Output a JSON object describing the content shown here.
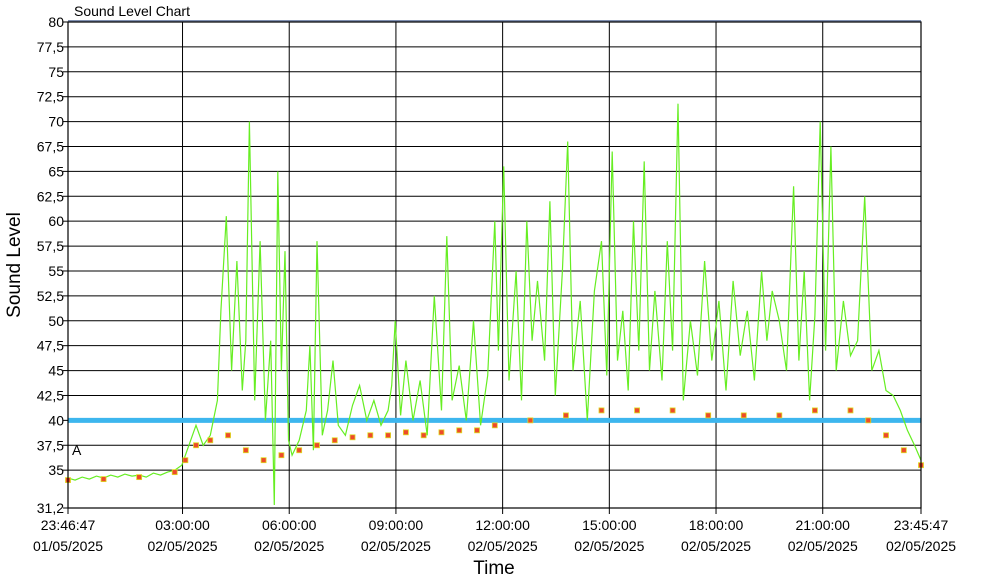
{
  "chart_data": {
    "type": "line",
    "title": "Sound Level Chart",
    "xlabel": "Time",
    "ylabel": "Sound Level",
    "ylim": [
      31.2,
      80
    ],
    "xlim_hours": [
      0,
      23.983
    ],
    "grid": true,
    "marker_label": "A",
    "threshold": {
      "value": 40,
      "color": "#3db6ee"
    },
    "colors": {
      "line": "#66ee22",
      "marker_fill": "#ee4a2a",
      "marker_edge": "#dddd22",
      "grid": "#000000"
    },
    "y_ticks": [
      "31,2",
      "35",
      "37,5",
      "40",
      "42,5",
      "45",
      "47,5",
      "50",
      "52,5",
      "55",
      "57,5",
      "60",
      "62,5",
      "65",
      "67,5",
      "70",
      "72,5",
      "75",
      "77,5",
      "80"
    ],
    "y_tick_values": [
      31.2,
      35,
      37.5,
      40,
      42.5,
      45,
      47.5,
      50,
      52.5,
      55,
      57.5,
      60,
      62.5,
      65,
      67.5,
      70,
      72.5,
      75,
      77.5,
      80
    ],
    "x_ticks": [
      {
        "h": 0,
        "time": "23:46:47",
        "date": "01/05/2025"
      },
      {
        "h": 3.22,
        "time": "03:00:00",
        "date": "02/05/2025"
      },
      {
        "h": 6.22,
        "time": "06:00:00",
        "date": "02/05/2025"
      },
      {
        "h": 9.22,
        "time": "09:00:00",
        "date": "02/05/2025"
      },
      {
        "h": 12.22,
        "time": "12:00:00",
        "date": "02/05/2025"
      },
      {
        "h": 15.22,
        "time": "15:00:00",
        "date": "02/05/2025"
      },
      {
        "h": 18.22,
        "time": "18:00:00",
        "date": "02/05/2025"
      },
      {
        "h": 21.22,
        "time": "21:00:00",
        "date": "02/05/2025"
      },
      {
        "h": 23.983,
        "time": "23:45:47",
        "date": "02/05/2025"
      }
    ],
    "series": [
      {
        "points": [
          [
            0.0,
            34.2
          ],
          [
            0.2,
            34.0
          ],
          [
            0.4,
            34.3
          ],
          [
            0.6,
            34.1
          ],
          [
            0.8,
            34.4
          ],
          [
            1.0,
            34.2
          ],
          [
            1.2,
            34.5
          ],
          [
            1.4,
            34.3
          ],
          [
            1.6,
            34.6
          ],
          [
            1.8,
            34.4
          ],
          [
            2.0,
            34.5
          ],
          [
            2.2,
            34.3
          ],
          [
            2.4,
            34.7
          ],
          [
            2.6,
            34.5
          ],
          [
            2.8,
            34.8
          ],
          [
            3.0,
            35.0
          ],
          [
            3.2,
            35.5
          ],
          [
            3.4,
            37.5
          ],
          [
            3.6,
            39.5
          ],
          [
            3.8,
            37.5
          ],
          [
            4.0,
            38.5
          ],
          [
            4.2,
            42.0
          ],
          [
            4.3,
            51.0
          ],
          [
            4.45,
            60.5
          ],
          [
            4.6,
            45.0
          ],
          [
            4.75,
            56.0
          ],
          [
            4.9,
            43.0
          ],
          [
            5.0,
            48.0
          ],
          [
            5.1,
            70.0
          ],
          [
            5.25,
            42.0
          ],
          [
            5.4,
            58.0
          ],
          [
            5.55,
            40.0
          ],
          [
            5.7,
            48.0
          ],
          [
            5.8,
            31.5
          ],
          [
            5.9,
            65.0
          ],
          [
            6.0,
            45.0
          ],
          [
            6.1,
            57.0
          ],
          [
            6.2,
            38.0
          ],
          [
            6.3,
            36.5
          ],
          [
            6.5,
            38.0
          ],
          [
            6.7,
            41.0
          ],
          [
            6.8,
            47.5
          ],
          [
            6.9,
            37.0
          ],
          [
            7.0,
            58.0
          ],
          [
            7.15,
            38.5
          ],
          [
            7.3,
            41.0
          ],
          [
            7.45,
            46.0
          ],
          [
            7.6,
            39.5
          ],
          [
            7.8,
            38.5
          ],
          [
            8.0,
            41.5
          ],
          [
            8.2,
            43.5
          ],
          [
            8.4,
            40.0
          ],
          [
            8.6,
            42.0
          ],
          [
            8.8,
            39.5
          ],
          [
            9.0,
            41.0
          ],
          [
            9.1,
            43.5
          ],
          [
            9.2,
            50.0
          ],
          [
            9.35,
            40.5
          ],
          [
            9.5,
            46.0
          ],
          [
            9.7,
            40.0
          ],
          [
            9.9,
            44.0
          ],
          [
            10.1,
            38.5
          ],
          [
            10.3,
            52.5
          ],
          [
            10.5,
            41.0
          ],
          [
            10.65,
            58.5
          ],
          [
            10.8,
            42.0
          ],
          [
            11.0,
            45.5
          ],
          [
            11.2,
            40.0
          ],
          [
            11.4,
            50.0
          ],
          [
            11.6,
            39.5
          ],
          [
            11.8,
            44.5
          ],
          [
            12.0,
            60.0
          ],
          [
            12.1,
            47.0
          ],
          [
            12.25,
            65.5
          ],
          [
            12.4,
            44.0
          ],
          [
            12.6,
            55.0
          ],
          [
            12.75,
            42.0
          ],
          [
            12.9,
            60.0
          ],
          [
            13.05,
            48.0
          ],
          [
            13.2,
            54.0
          ],
          [
            13.4,
            46.0
          ],
          [
            13.55,
            62.0
          ],
          [
            13.7,
            42.5
          ],
          [
            13.9,
            55.0
          ],
          [
            14.05,
            68.0
          ],
          [
            14.2,
            45.0
          ],
          [
            14.4,
            52.0
          ],
          [
            14.6,
            40.0
          ],
          [
            14.8,
            53.0
          ],
          [
            15.0,
            58.0
          ],
          [
            15.15,
            44.5
          ],
          [
            15.3,
            67.0
          ],
          [
            15.45,
            46.0
          ],
          [
            15.6,
            51.0
          ],
          [
            15.75,
            43.0
          ],
          [
            15.9,
            60.0
          ],
          [
            16.05,
            47.0
          ],
          [
            16.2,
            66.0
          ],
          [
            16.35,
            45.0
          ],
          [
            16.5,
            53.0
          ],
          [
            16.7,
            44.0
          ],
          [
            16.85,
            58.0
          ],
          [
            17.0,
            47.0
          ],
          [
            17.15,
            71.8
          ],
          [
            17.3,
            42.0
          ],
          [
            17.5,
            50.0
          ],
          [
            17.7,
            44.5
          ],
          [
            17.9,
            56.0
          ],
          [
            18.1,
            46.0
          ],
          [
            18.3,
            52.0
          ],
          [
            18.5,
            43.0
          ],
          [
            18.7,
            54.0
          ],
          [
            18.9,
            46.5
          ],
          [
            19.1,
            51.0
          ],
          [
            19.3,
            44.0
          ],
          [
            19.5,
            55.0
          ],
          [
            19.65,
            48.0
          ],
          [
            19.8,
            53.0
          ],
          [
            20.0,
            50.0
          ],
          [
            20.2,
            45.0
          ],
          [
            20.4,
            63.5
          ],
          [
            20.55,
            46.0
          ],
          [
            20.7,
            55.0
          ],
          [
            20.85,
            42.0
          ],
          [
            21.0,
            50.5
          ],
          [
            21.15,
            70.0
          ],
          [
            21.3,
            47.0
          ],
          [
            21.45,
            67.5
          ],
          [
            21.6,
            45.0
          ],
          [
            21.8,
            52.0
          ],
          [
            22.0,
            46.5
          ],
          [
            22.2,
            48.0
          ],
          [
            22.4,
            62.5
          ],
          [
            22.6,
            45.0
          ],
          [
            22.8,
            47.0
          ],
          [
            23.0,
            43.0
          ],
          [
            23.2,
            42.5
          ],
          [
            23.4,
            41.0
          ],
          [
            23.6,
            39.0
          ],
          [
            23.8,
            37.5
          ],
          [
            23.983,
            36.0
          ]
        ],
        "floor": [
          [
            0.0,
            34.0
          ],
          [
            1.0,
            34.1
          ],
          [
            2.0,
            34.3
          ],
          [
            3.0,
            34.8
          ],
          [
            3.3,
            36.0
          ],
          [
            3.6,
            37.5
          ],
          [
            4.0,
            38.0
          ],
          [
            4.5,
            38.5
          ],
          [
            5.0,
            37.0
          ],
          [
            5.5,
            36.0
          ],
          [
            6.0,
            36.5
          ],
          [
            6.5,
            37.0
          ],
          [
            7.0,
            37.5
          ],
          [
            7.5,
            38.0
          ],
          [
            8.0,
            38.3
          ],
          [
            8.5,
            38.5
          ],
          [
            9.0,
            38.5
          ],
          [
            9.5,
            38.8
          ],
          [
            10.0,
            38.5
          ],
          [
            10.5,
            38.8
          ],
          [
            11.0,
            39.0
          ],
          [
            11.5,
            39.0
          ],
          [
            12.0,
            39.5
          ],
          [
            13.0,
            40.0
          ],
          [
            14.0,
            40.5
          ],
          [
            15.0,
            41.0
          ],
          [
            16.0,
            41.0
          ],
          [
            17.0,
            41.0
          ],
          [
            18.0,
            40.5
          ],
          [
            19.0,
            40.5
          ],
          [
            20.0,
            40.5
          ],
          [
            21.0,
            41.0
          ],
          [
            22.0,
            41.0
          ],
          [
            22.5,
            40.0
          ],
          [
            23.0,
            38.5
          ],
          [
            23.5,
            37.0
          ],
          [
            23.983,
            35.5
          ]
        ]
      }
    ]
  }
}
